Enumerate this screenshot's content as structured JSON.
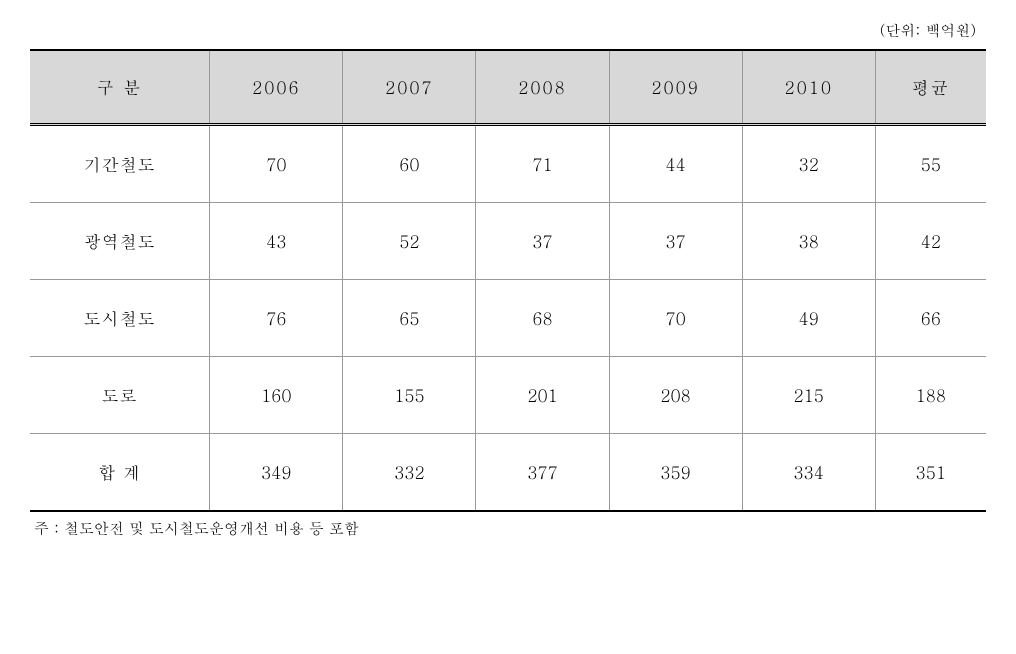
{
  "unit_label": "(단위: 백억원)",
  "table": {
    "columns": [
      "구 분",
      "2006",
      "2007",
      "2008",
      "2009",
      "2010",
      "평균"
    ],
    "rows": [
      {
        "label": "기간철도",
        "values": [
          "70",
          "60",
          "71",
          "44",
          "32",
          "55"
        ]
      },
      {
        "label": "광역철도",
        "values": [
          "43",
          "52",
          "37",
          "37",
          "38",
          "42"
        ]
      },
      {
        "label": "도시철도",
        "values": [
          "76",
          "65",
          "68",
          "70",
          "49",
          "66"
        ]
      },
      {
        "label": "도로",
        "values": [
          "160",
          "155",
          "201",
          "208",
          "215",
          "188"
        ]
      },
      {
        "label": "합 계",
        "values": [
          "349",
          "332",
          "377",
          "359",
          "334",
          "351"
        ]
      }
    ],
    "header_bg_color": "#d8d8d8",
    "border_color": "#000000",
    "cell_border_color": "#999999",
    "font_size": 17,
    "cell_padding": 26
  },
  "footnote": "주 : 철도안전 및 도시철도운영개선 비용 등 포함"
}
